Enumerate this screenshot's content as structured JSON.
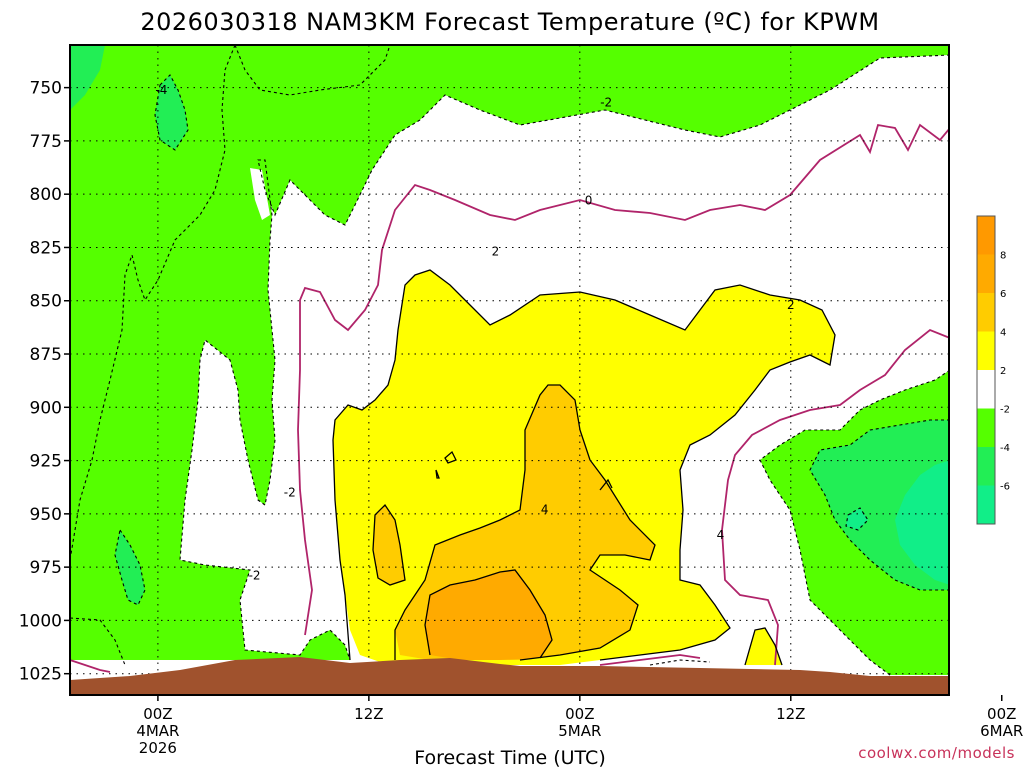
{
  "chart_data": {
    "type": "heatmap",
    "title": "2026030318 NAM3KM Forecast Temperature (ºC) for KPWM",
    "xlabel": "Forecast Time (UTC)",
    "ylabel": "",
    "credit": "coolwx.com/models",
    "y_axis": {
      "reversed": true,
      "ylim": [
        1035,
        730
      ],
      "ticks": [
        {
          "value": 750,
          "label": "750"
        },
        {
          "value": 775,
          "label": "775"
        },
        {
          "value": 800,
          "label": "800"
        },
        {
          "value": 825,
          "label": "825"
        },
        {
          "value": 850,
          "label": "850"
        },
        {
          "value": 875,
          "label": "875"
        },
        {
          "value": 900,
          "label": "900"
        },
        {
          "value": 925,
          "label": "925"
        },
        {
          "value": 950,
          "label": "950"
        },
        {
          "value": 975,
          "label": "975"
        },
        {
          "value": 1000,
          "label": "1000"
        },
        {
          "value": 1025,
          "label": "1025"
        }
      ]
    },
    "x_axis": {
      "xlim": [
        -5,
        45
      ],
      "units": "hours after 00Z 4MAR2026",
      "ticks": [
        {
          "value": 0,
          "lines": [
            "00Z",
            "4MAR",
            "2026"
          ]
        },
        {
          "value": 12,
          "lines": [
            "12Z"
          ]
        },
        {
          "value": 24,
          "lines": [
            "00Z",
            "5MAR"
          ]
        },
        {
          "value": 36,
          "lines": [
            "12Z"
          ]
        },
        {
          "value": 48,
          "lines": [
            "00Z",
            "6MAR"
          ]
        }
      ]
    },
    "grid": true,
    "legend": "right colorbar",
    "colorbar": {
      "position": "right",
      "bins": [
        {
          "min": 8,
          "max": 10,
          "color": "#ff9900"
        },
        {
          "min": 6,
          "max": 8,
          "color": "#ffaa00"
        },
        {
          "min": 4,
          "max": 6,
          "color": "#ffcc00"
        },
        {
          "min": 2,
          "max": 4,
          "color": "#ffff00"
        },
        {
          "min": -2,
          "max": 2,
          "color": "#ffffff"
        },
        {
          "min": -4,
          "max": -2,
          "color": "#55ff00"
        },
        {
          "min": -6,
          "max": -4,
          "color": "#22ee55"
        },
        {
          "min": -8,
          "max": -6,
          "color": "#11ee88"
        }
      ],
      "tick_labels": [
        "8",
        "6",
        "4",
        "2",
        "-2",
        "-4",
        "-6"
      ]
    },
    "contour_labels": [
      {
        "text": "-4",
        "x": 0.2,
        "p": 751
      },
      {
        "text": "-2",
        "x": 25.5,
        "p": 757
      },
      {
        "text": "0",
        "x": 24.5,
        "p": 803
      },
      {
        "text": "2",
        "x": 19.2,
        "p": 827
      },
      {
        "text": "2",
        "x": 36.0,
        "p": 852
      },
      {
        "text": "-2",
        "x": 7.5,
        "p": 940
      },
      {
        "text": "-2",
        "x": 5.5,
        "p": 979
      },
      {
        "text": "4",
        "x": 22.0,
        "p": 948
      },
      {
        "text": "4",
        "x": 32.0,
        "p": 960
      }
    ],
    "colors": {
      "ground": "#a0522d",
      "zero_line": "#b0246a",
      "contour_line": "#000000"
    }
  }
}
